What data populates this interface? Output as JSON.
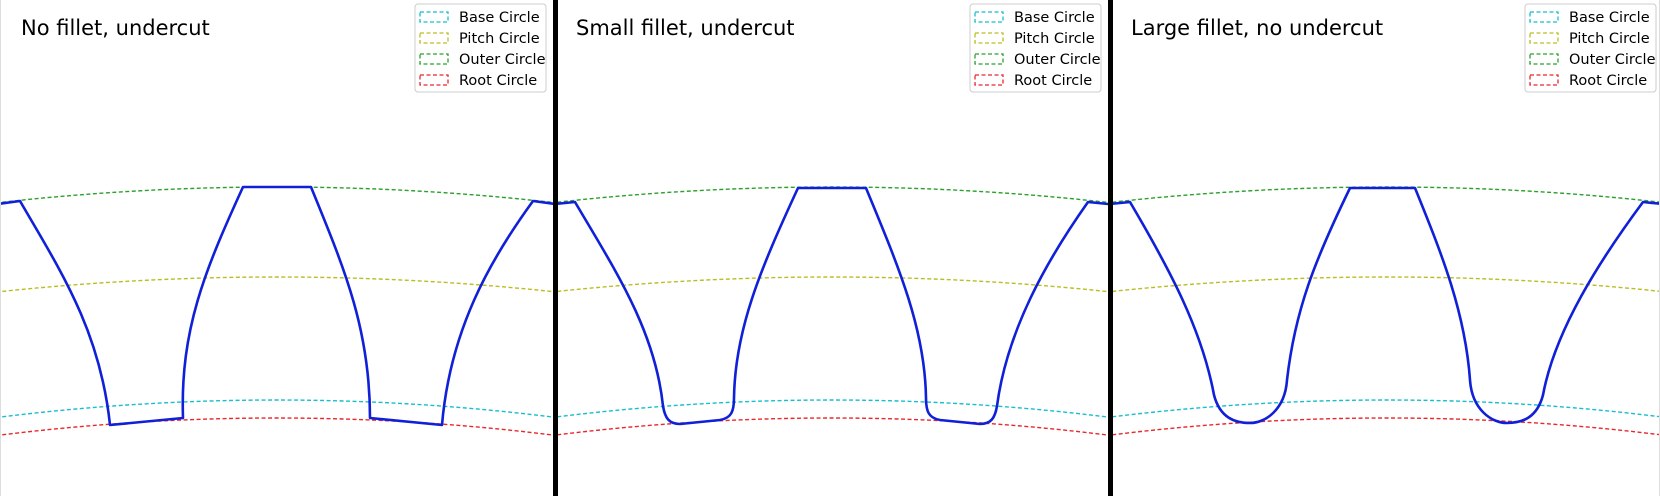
{
  "colors": {
    "base": "#17becf",
    "pitch": "#bcbd22",
    "outer": "#2ca02c",
    "root": "#e8282d",
    "profile": "#1020d8",
    "divider": "#000000"
  },
  "legend": [
    {
      "key": "base",
      "label": "Base Circle"
    },
    {
      "key": "pitch",
      "label": "Pitch Circle"
    },
    {
      "key": "outer",
      "label": "Outer Circle"
    },
    {
      "key": "root",
      "label": "Root Circle"
    }
  ],
  "panels": [
    {
      "title": "No fillet,  undercut",
      "fillet": "none"
    },
    {
      "title": "Small fillet,  undercut",
      "fillet": "small"
    },
    {
      "title": "Large fillet,  no undercut",
      "fillet": "large"
    }
  ]
}
